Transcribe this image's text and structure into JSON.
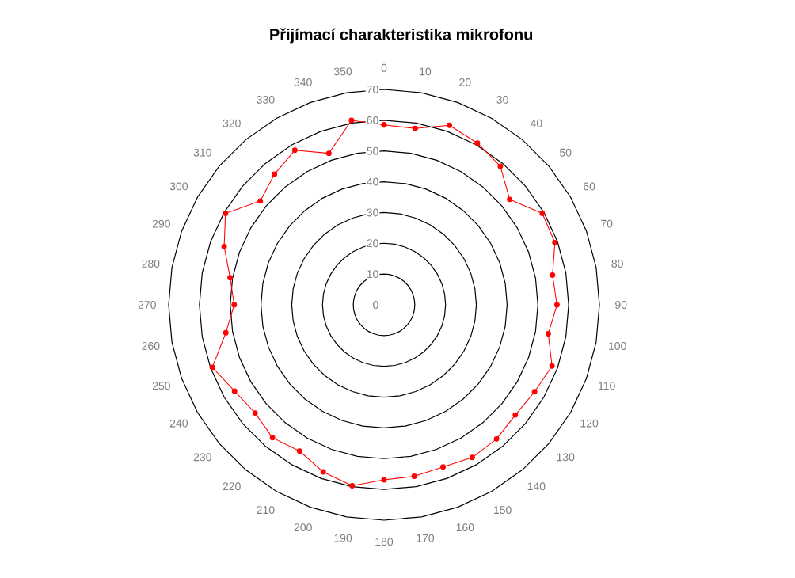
{
  "chart_data": {
    "type": "radar",
    "title": "Přijímací charakteristika mikrofonu",
    "categories": [
      "0",
      "10",
      "20",
      "30",
      "40",
      "50",
      "60",
      "70",
      "80",
      "90",
      "100",
      "110",
      "120",
      "130",
      "140",
      "150",
      "160",
      "170",
      "180",
      "190",
      "200",
      "210",
      "220",
      "230",
      "240",
      "250",
      "260",
      "270",
      "280",
      "290",
      "300",
      "310",
      "320",
      "330",
      "340",
      "350"
    ],
    "series": [
      {
        "color": "#ff0000",
        "values": [
          58.5,
          58.2,
          62.1,
          60.7,
          58.8,
          53.3,
          59.4,
          59.1,
          55.6,
          56.2,
          54.2,
          58.1,
          56.5,
          55.7,
          56.9,
          57.3,
          56.1,
          56.6,
          56.9,
          59.7,
          57.8,
          54.9,
          56.4,
          54.7,
          56.1,
          59.4,
          52.2,
          48.7,
          50.8,
          55.3,
          59.5,
          52.5,
          55.4,
          58.0,
          52.4,
          60.9
        ]
      }
    ],
    "ylim": [
      0,
      70
    ],
    "yticks": [
      0,
      10,
      20,
      30,
      40,
      50,
      60,
      70
    ],
    "grid": true,
    "marker": "circle"
  }
}
